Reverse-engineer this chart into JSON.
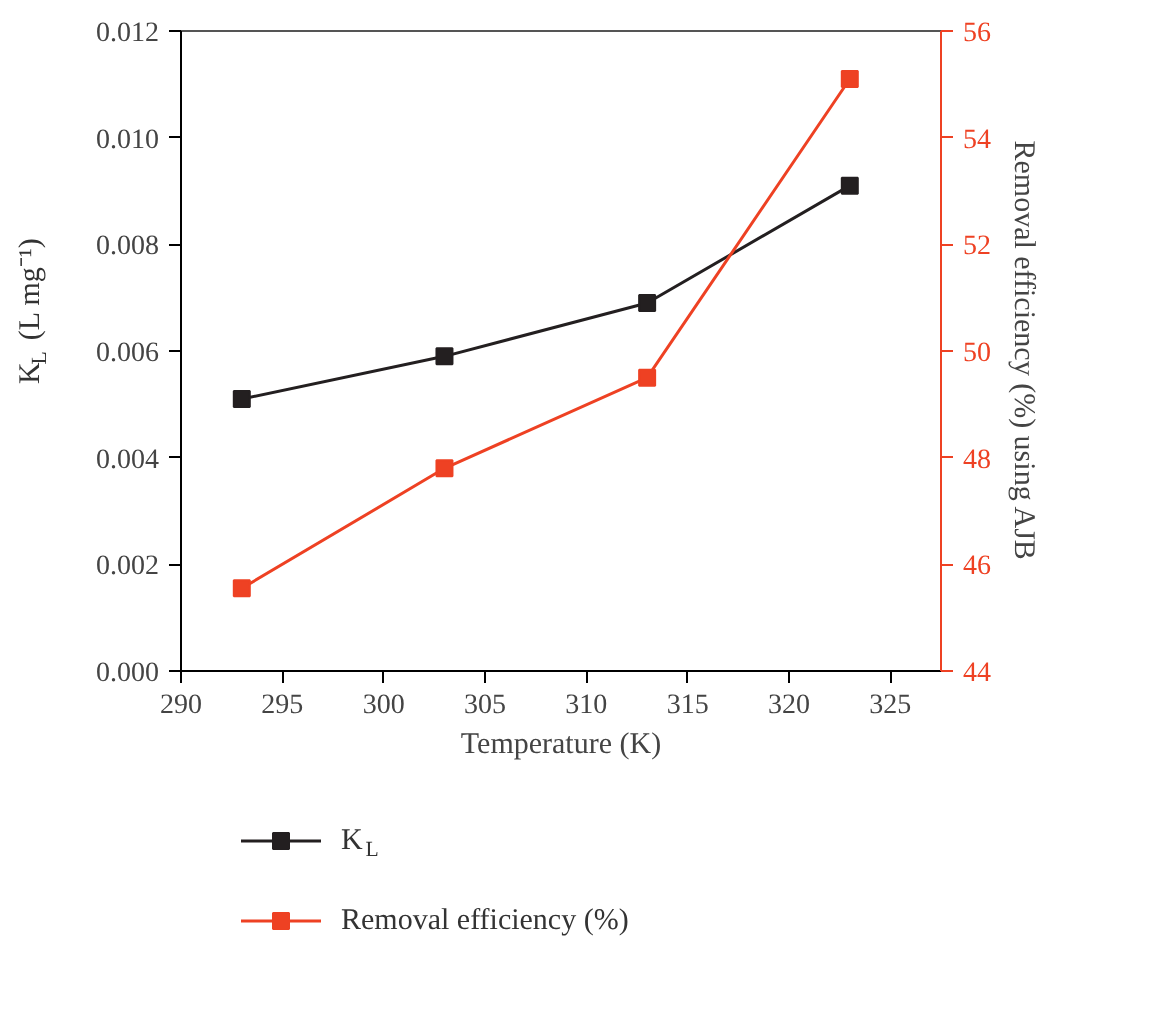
{
  "chart_data": {
    "type": "line",
    "xlabel": "Temperature (K)",
    "ylabel": "K$_{L}$ (L mg⁻¹)",
    "y2label": "Removal efficiency (%) using AJB",
    "x": [
      293,
      303,
      313,
      323
    ],
    "series": [
      {
        "name": "K$_{L}$",
        "color": "#231f20",
        "values": [
          0.0051,
          0.0059,
          0.0069,
          0.0091
        ]
      },
      {
        "name": "Removal efficiency (%)",
        "color": "#ee4123",
        "axis": "y2",
        "values": [
          45.55,
          47.8,
          49.5,
          55.1
        ]
      }
    ],
    "xlim": [
      290,
      327.5
    ],
    "xticks": [
      290,
      295,
      300,
      305,
      310,
      315,
      320,
      325
    ],
    "ylim": [
      0,
      0.012
    ],
    "yticks": [
      {
        "value": 0,
        "label": "0.000"
      },
      {
        "value": 0.002,
        "label": "0.002"
      },
      {
        "value": 0.004,
        "label": "0.004"
      },
      {
        "value": 0.006,
        "label": "0.006"
      },
      {
        "value": 0.008,
        "label": "0.008"
      },
      {
        "value": 0.01,
        "label": "0.010"
      },
      {
        "value": 0.012,
        "label": "0.012"
      }
    ],
    "y2lim": [
      44,
      56
    ],
    "y2ticks": [
      44,
      46,
      48,
      50,
      52,
      54,
      56
    ],
    "marker": "square",
    "line_style": "solid",
    "grid": false,
    "legend": "bottom"
  }
}
